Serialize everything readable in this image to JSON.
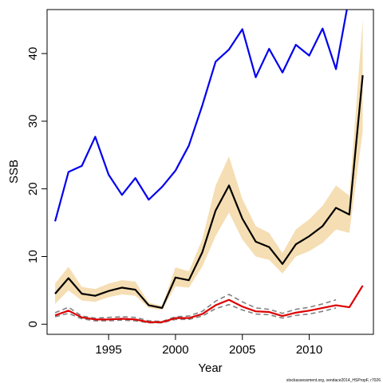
{
  "chart_data": {
    "type": "line",
    "xlabel": "Year",
    "ylabel": "SSB",
    "xlim": [
      1990.4,
      2014.8
    ],
    "ylim": [
      -1.5,
      46.5
    ],
    "x_ticks": [
      1995,
      2000,
      2005,
      2010
    ],
    "y_ticks": [
      0,
      10,
      20,
      30,
      40
    ],
    "grid": false,
    "legend": "none",
    "x": [
      1991,
      1992,
      1993,
      1994,
      1995,
      1996,
      1997,
      1998,
      1999,
      2000,
      2001,
      2002,
      2003,
      2004,
      2005,
      2006,
      2007,
      2008,
      2009,
      2010,
      2011,
      2012,
      2013,
      2014
    ],
    "band": {
      "color": "#f5deb3",
      "lower": [
        3.0,
        5.0,
        3.5,
        3.3,
        4.0,
        4.4,
        4.2,
        2.4,
        2.1,
        5.6,
        5.4,
        8.5,
        13.0,
        16.5,
        12.5,
        10.0,
        9.5,
        7.5,
        10.0,
        10.8,
        12.0,
        14.0,
        13.5,
        28.5
      ],
      "upper": [
        6.0,
        8.5,
        5.5,
        5.2,
        6.0,
        6.5,
        6.3,
        3.2,
        2.7,
        8.4,
        7.8,
        12.5,
        20.5,
        24.8,
        18.5,
        14.5,
        13.5,
        10.5,
        14.0,
        15.5,
        17.5,
        20.5,
        19.0,
        45.0
      ]
    },
    "series": [
      {
        "color": "#0000ee",
        "style": "solid",
        "values": [
          15.2,
          22.5,
          23.4,
          27.7,
          22.1,
          19.1,
          21.6,
          18.4,
          20.3,
          22.7,
          26.4,
          32.3,
          38.8,
          40.6,
          43.6,
          36.5,
          40.7,
          37.2,
          41.3,
          39.7,
          43.7,
          37.7,
          48.5,
          null
        ]
      },
      {
        "color": "#000000",
        "style": "solid",
        "values": [
          4.5,
          6.8,
          4.5,
          4.2,
          4.9,
          5.4,
          5.1,
          2.8,
          2.4,
          6.9,
          6.5,
          10.6,
          16.8,
          20.5,
          15.6,
          12.2,
          11.4,
          8.9,
          11.8,
          13.0,
          14.5,
          17.2,
          16.2,
          36.8
        ]
      },
      {
        "color": "#808080",
        "style": "dashed",
        "values": [
          1.7,
          2.5,
          1.2,
          0.9,
          1.0,
          1.1,
          1.0,
          0.5,
          0.4,
          1.1,
          1.2,
          1.9,
          3.4,
          4.4,
          3.3,
          2.4,
          2.2,
          1.6,
          2.2,
          2.5,
          3.0,
          3.6,
          null,
          null
        ]
      },
      {
        "color": "#808080",
        "style": "dashed",
        "values": [
          1.1,
          1.6,
          0.8,
          0.5,
          0.5,
          0.6,
          0.5,
          0.2,
          0.2,
          0.7,
          0.7,
          1.2,
          2.3,
          2.9,
          2.1,
          1.5,
          1.4,
          0.9,
          1.3,
          1.5,
          1.9,
          2.4,
          null,
          null
        ]
      },
      {
        "color": "#dd0000",
        "style": "solid",
        "values": [
          1.3,
          2.0,
          1.0,
          0.7,
          0.7,
          0.8,
          0.7,
          0.3,
          0.3,
          0.9,
          0.9,
          1.5,
          2.8,
          3.6,
          2.6,
          1.9,
          1.8,
          1.2,
          1.7,
          2.0,
          2.4,
          2.8,
          2.5,
          5.7
        ]
      }
    ],
    "footnote": "stockassessment.org, vendace2014_HSPropF, r7026"
  }
}
